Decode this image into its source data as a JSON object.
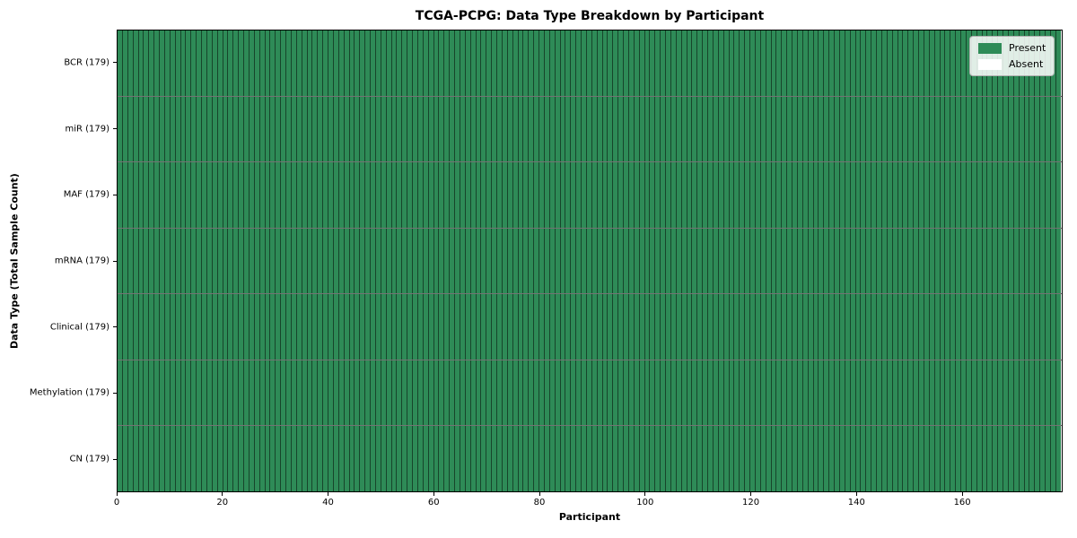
{
  "chart_data": {
    "type": "heatmap",
    "title": "TCGA-PCPG: Data Type Breakdown by Participant",
    "xlabel": "Participant",
    "ylabel": "Data Type (Total Sample Count)",
    "participants": 179,
    "x_range": [
      0,
      179
    ],
    "x_ticks": [
      0,
      20,
      40,
      60,
      80,
      100,
      120,
      140,
      160
    ],
    "grid": true,
    "rows": [
      {
        "label": "BCR (179)",
        "data_type": "BCR",
        "total_samples": 179,
        "present": 179,
        "absent": 0
      },
      {
        "label": "miR (179)",
        "data_type": "miR",
        "total_samples": 179,
        "present": 179,
        "absent": 0
      },
      {
        "label": "MAF (179)",
        "data_type": "MAF",
        "total_samples": 179,
        "present": 179,
        "absent": 0
      },
      {
        "label": "mRNA (179)",
        "data_type": "mRNA",
        "total_samples": 179,
        "present": 179,
        "absent": 0
      },
      {
        "label": "Clinical (179)",
        "data_type": "Clinical",
        "total_samples": 179,
        "present": 179,
        "absent": 0
      },
      {
        "label": "Methylation (179)",
        "data_type": "Methylation",
        "total_samples": 179,
        "present": 179,
        "absent": 0
      },
      {
        "label": "CN (179)",
        "data_type": "CN",
        "total_samples": 179,
        "present": 179,
        "absent": 0
      }
    ],
    "legend": {
      "position": "upper right",
      "entries": [
        {
          "label": "Present",
          "color": "#2e8b57"
        },
        {
          "label": "Absent",
          "color": "#ffffff"
        }
      ]
    },
    "colors": {
      "present": "#2e8b57",
      "absent": "#ffffff",
      "grid_line": "rgba(0,0,0,0.5)",
      "spine": "#000000",
      "background": "#ffffff"
    }
  }
}
